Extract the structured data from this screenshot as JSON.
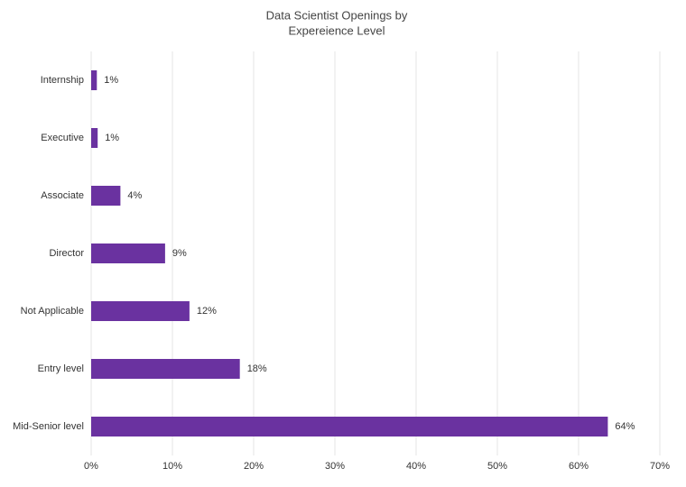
{
  "chart_data": {
    "type": "bar",
    "orientation": "horizontal",
    "title": [
      "Data Scientist Openings by",
      "Expereience Level"
    ],
    "categories": [
      "Internship",
      "Executive",
      "Associate",
      "Director",
      "Not Applicable",
      "Entry level",
      "Mid-Senior level"
    ],
    "values": [
      0.7,
      0.8,
      3.6,
      9.1,
      12.1,
      18.3,
      63.6
    ],
    "value_labels": [
      "1%",
      "1%",
      "4%",
      "9%",
      "12%",
      "18%",
      "64%"
    ],
    "color": "#6a32a0",
    "xlim": [
      0,
      70
    ],
    "xticks": [
      {
        "value": 0,
        "label": "0%"
      },
      {
        "value": 10,
        "label": "10%"
      },
      {
        "value": 20,
        "label": "20%"
      },
      {
        "value": 30,
        "label": "30%"
      },
      {
        "value": 40,
        "label": "40%"
      },
      {
        "value": 50,
        "label": "50%"
      },
      {
        "value": 60,
        "label": "60%"
      },
      {
        "value": 70,
        "label": "70%"
      }
    ],
    "grid": true
  }
}
